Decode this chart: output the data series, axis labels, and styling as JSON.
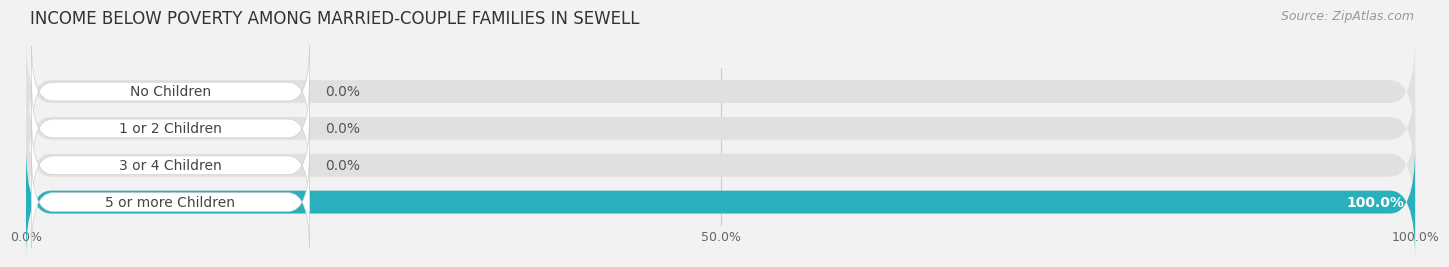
{
  "title": "INCOME BELOW POVERTY AMONG MARRIED-COUPLE FAMILIES IN SEWELL",
  "source": "Source: ZipAtlas.com",
  "categories": [
    "No Children",
    "1 or 2 Children",
    "3 or 4 Children",
    "5 or more Children"
  ],
  "values": [
    0.0,
    0.0,
    0.0,
    100.0
  ],
  "bar_colors": [
    "#f0a0aa",
    "#a8b8e8",
    "#c0a0cc",
    "#2ab0bc"
  ],
  "background_color": "#f2f2f2",
  "bar_background_color": "#e0e0e0",
  "xlim": [
    0,
    100
  ],
  "xticks": [
    0.0,
    50.0,
    100.0
  ],
  "xtick_labels": [
    "0.0%",
    "50.0%",
    "100.0%"
  ],
  "title_fontsize": 12,
  "source_fontsize": 9,
  "label_fontsize": 10,
  "value_fontsize": 10,
  "bar_height": 0.62,
  "figsize": [
    14.06,
    2.33
  ]
}
